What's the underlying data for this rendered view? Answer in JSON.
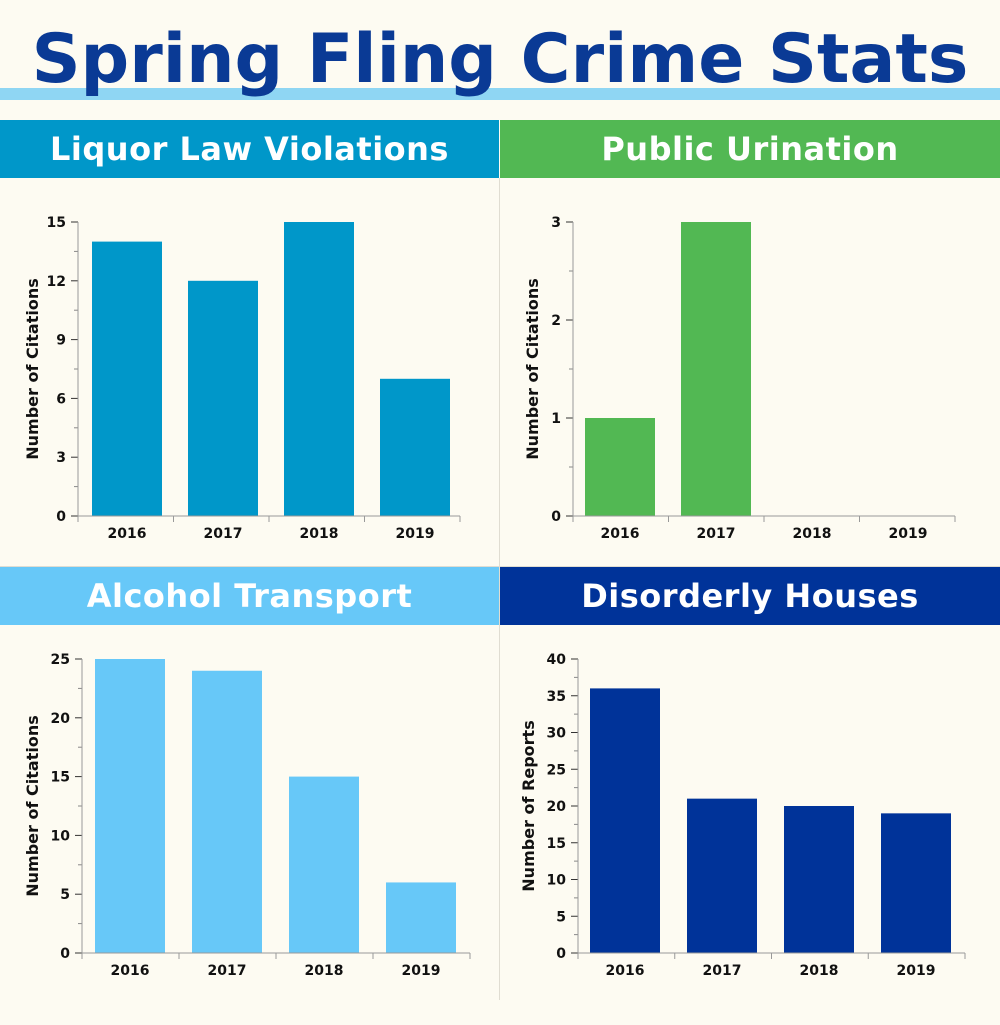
{
  "page": {
    "title": "Spring Fling Crime Stats"
  },
  "colors": {
    "title": "#0a3a95",
    "stripe": "#8fd6f3",
    "liquor": "#0097c9",
    "urination": "#52b853",
    "transport": "#67c8f8",
    "disorderly": "#003399"
  },
  "chart_data": [
    {
      "type": "bar",
      "title": "Liquor Law Violations",
      "categories": [
        "2016",
        "2017",
        "2018",
        "2019"
      ],
      "values": [
        14,
        12,
        15,
        7
      ],
      "ylabel": "Number of Citations",
      "xlabel": "",
      "ylim": [
        0,
        15
      ],
      "yticks": [
        0,
        3,
        6,
        9,
        12,
        15
      ],
      "color": "#0097c9"
    },
    {
      "type": "bar",
      "title": "Public Urination",
      "categories": [
        "2016",
        "2017",
        "2018",
        "2019"
      ],
      "values": [
        1,
        3,
        0,
        0
      ],
      "ylabel": "Number of Citations",
      "xlabel": "",
      "ylim": [
        0,
        3
      ],
      "yticks": [
        0,
        1,
        2,
        3
      ],
      "color": "#52b853"
    },
    {
      "type": "bar",
      "title": "Alcohol Transport",
      "categories": [
        "2016",
        "2017",
        "2018",
        "2019"
      ],
      "values": [
        25,
        24,
        15,
        6
      ],
      "ylabel": "Number of Citations",
      "xlabel": "",
      "ylim": [
        0,
        25
      ],
      "yticks": [
        0,
        5,
        10,
        15,
        20,
        25
      ],
      "color": "#67c8f8"
    },
    {
      "type": "bar",
      "title": "Disorderly Houses",
      "categories": [
        "2016",
        "2017",
        "2018",
        "2019"
      ],
      "values": [
        36,
        21,
        20,
        19
      ],
      "ylabel": "Number of Reports",
      "xlabel": "",
      "ylim": [
        0,
        40
      ],
      "yticks": [
        0,
        5,
        10,
        15,
        20,
        25,
        30,
        35,
        40
      ],
      "color": "#003399"
    }
  ]
}
